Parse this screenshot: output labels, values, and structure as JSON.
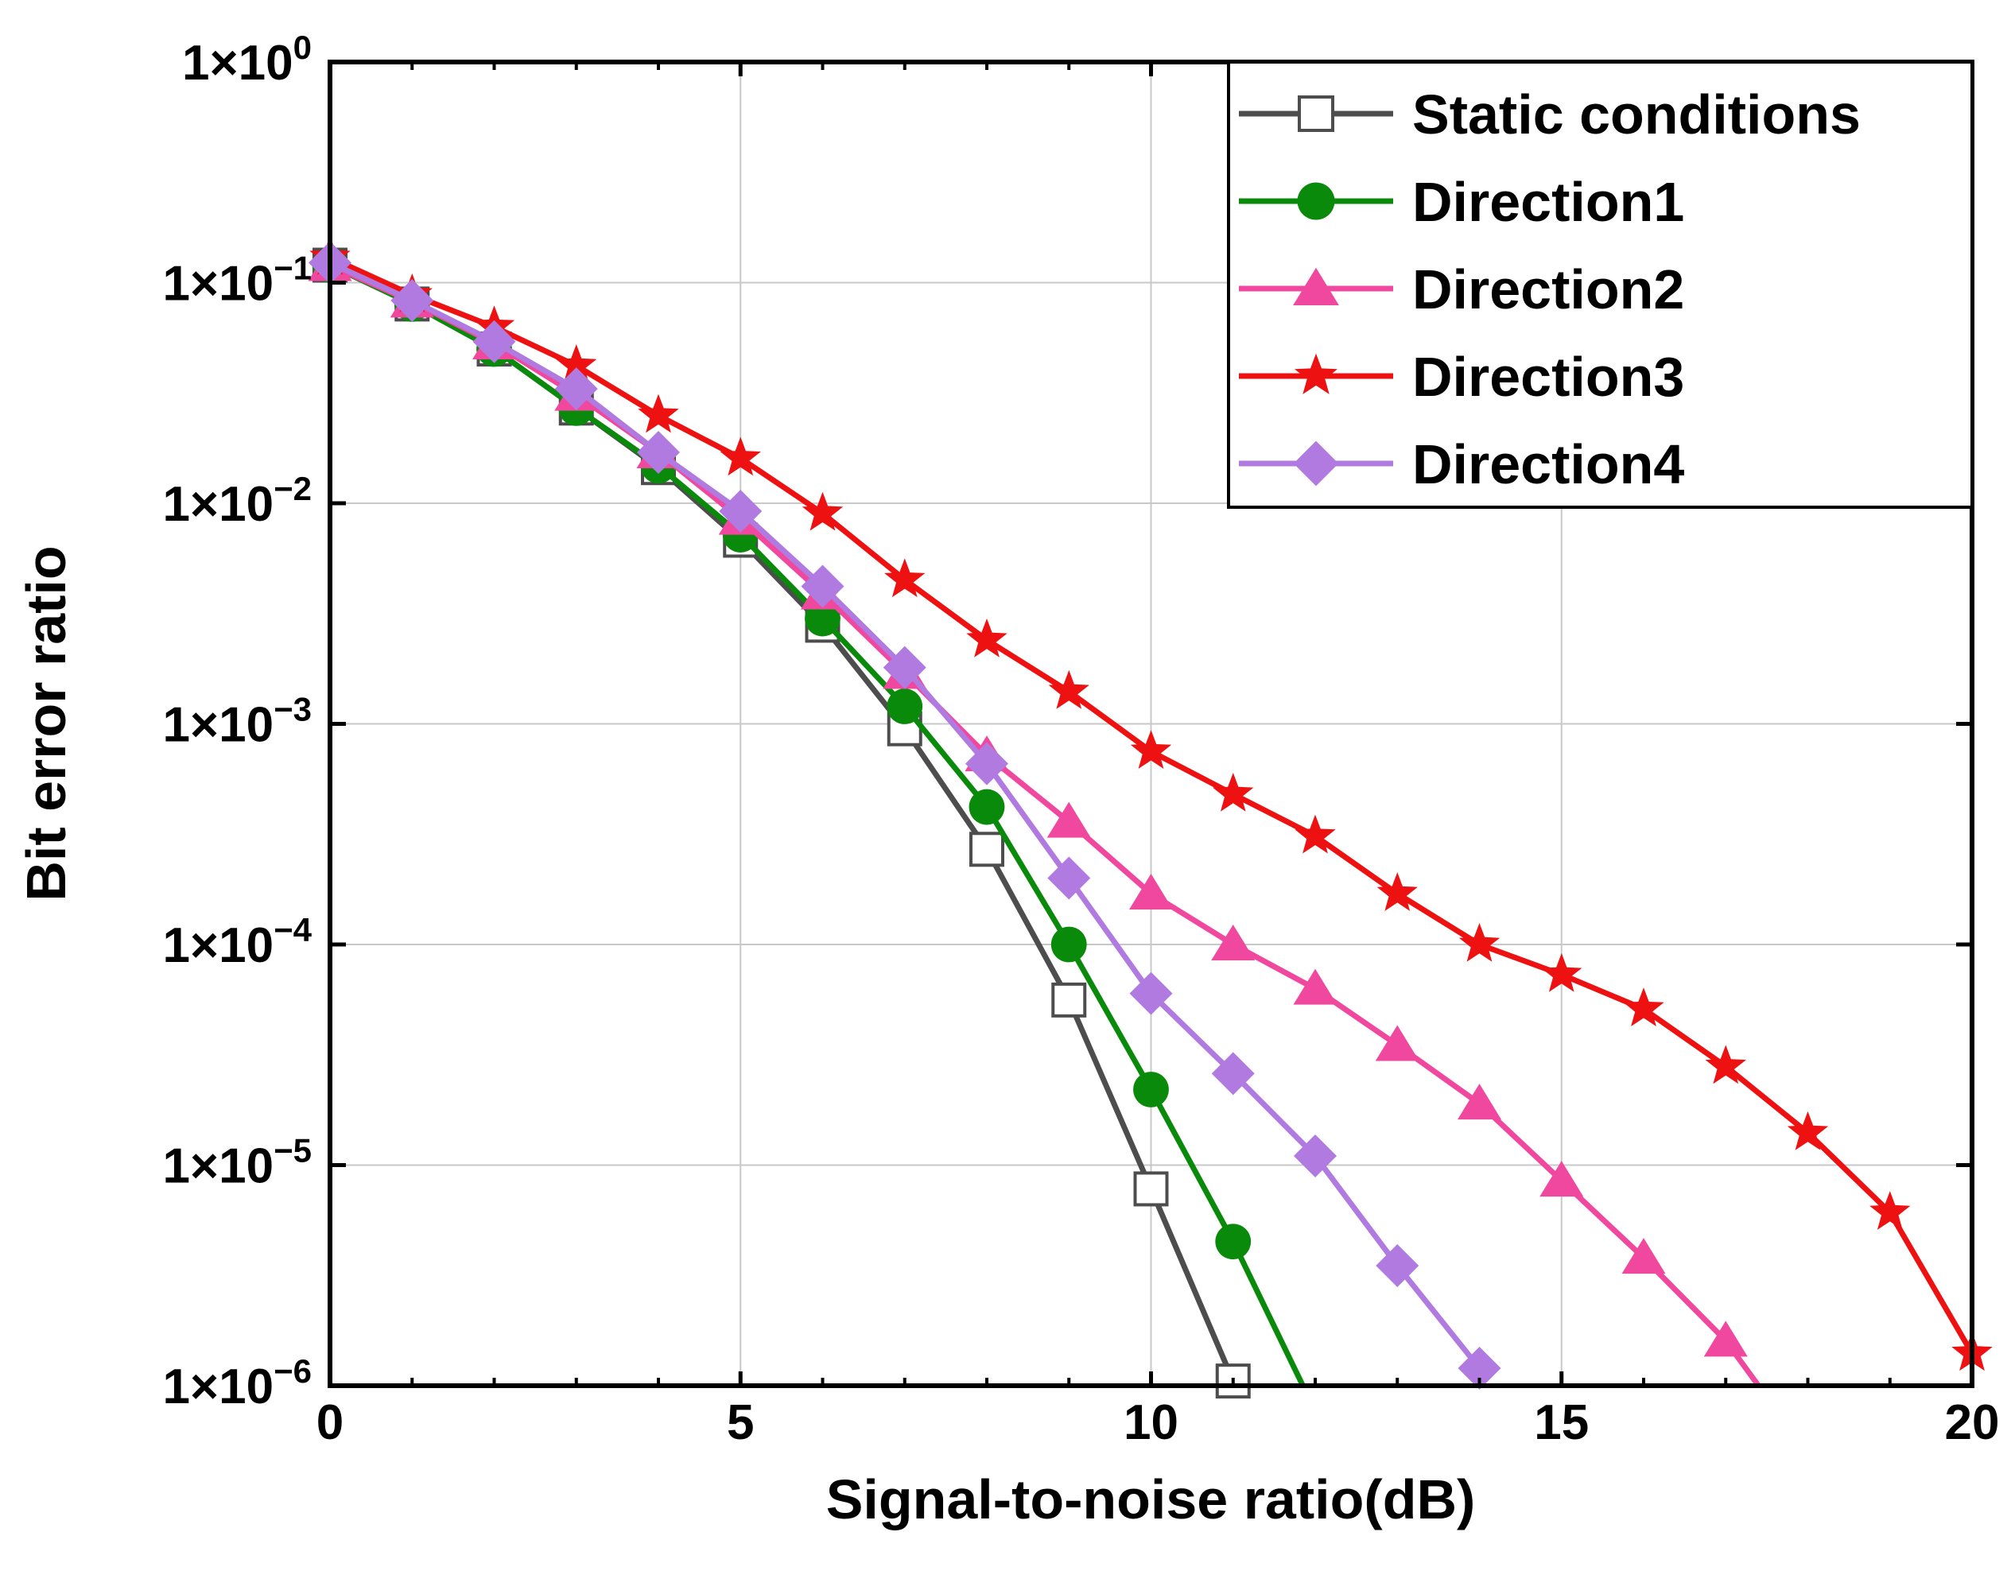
{
  "chart_data": {
    "type": "line",
    "title": "",
    "xlabel": "Signal-to-noise ratio(dB)",
    "ylabel": "Bit error ratio",
    "xlim": [
      0,
      20
    ],
    "ylim": [
      1e-06,
      1
    ],
    "yscale": "log",
    "grid": true,
    "legend_position": "top-right",
    "x_ticks": [
      0,
      5,
      10,
      15,
      20
    ],
    "x_tick_labels": [
      "0",
      "5",
      "10",
      "15",
      "20"
    ],
    "y_ticks": [
      {
        "value": 1,
        "base": "1×10",
        "exp": "0"
      },
      {
        "value": 0.1,
        "base": "1×10",
        "exp": "−1"
      },
      {
        "value": 0.01,
        "base": "1×10",
        "exp": "−2"
      },
      {
        "value": 0.001,
        "base": "1×10",
        "exp": "−3"
      },
      {
        "value": 0.0001,
        "base": "1×10",
        "exp": "−4"
      },
      {
        "value": 1e-05,
        "base": "1×10",
        "exp": "−5"
      },
      {
        "value": 1e-06,
        "base": "1×10",
        "exp": "−6"
      }
    ],
    "series": [
      {
        "name": "Static conditions",
        "color": "#4d4d4d",
        "marker": "square-open",
        "x": [
          0,
          1,
          2,
          3,
          4,
          5,
          6,
          7,
          8,
          9,
          10,
          11
        ],
        "y": [
          0.12,
          0.08,
          0.05,
          0.027,
          0.0145,
          0.0068,
          0.0028,
          0.00095,
          0.00027,
          5.6e-05,
          7.8e-06,
          1.05e-06
        ]
      },
      {
        "name": "Direction1",
        "color": "#0a8a0a",
        "marker": "circle",
        "x": [
          0,
          1,
          2,
          3,
          4,
          5,
          6,
          7,
          8,
          9,
          10,
          11,
          11.85
        ],
        "y": [
          0.12,
          0.08,
          0.05,
          0.027,
          0.0148,
          0.0072,
          0.003,
          0.0012,
          0.00042,
          0.0001,
          2.2e-05,
          4.5e-06,
          1e-06
        ]
      },
      {
        "name": "Direction2",
        "color": "#f0489e",
        "marker": "triangle",
        "x": [
          0,
          1,
          2,
          3,
          4,
          5,
          6,
          7,
          8,
          9,
          10,
          11,
          12,
          13,
          14,
          15,
          16,
          17,
          17.4
        ],
        "y": [
          0.12,
          0.082,
          0.053,
          0.031,
          0.017,
          0.0085,
          0.0039,
          0.0017,
          0.00072,
          0.00036,
          0.00017,
          0.0001,
          6.3e-05,
          3.5e-05,
          1.9e-05,
          8.5e-06,
          3.8e-06,
          1.6e-06,
          1e-06
        ]
      },
      {
        "name": "Direction3",
        "color": "#ee1111",
        "marker": "star",
        "x": [
          0,
          1,
          2,
          3,
          4,
          5,
          6,
          7,
          8,
          9,
          10,
          11,
          12,
          13,
          14,
          15,
          16,
          17,
          18,
          19,
          20
        ],
        "y": [
          0.13,
          0.088,
          0.063,
          0.042,
          0.025,
          0.016,
          0.009,
          0.0045,
          0.0024,
          0.0014,
          0.00075,
          0.00048,
          0.00031,
          0.00017,
          0.0001,
          7.3e-05,
          5.1e-05,
          2.8e-05,
          1.4e-05,
          6.1e-06,
          1.4e-06
        ]
      },
      {
        "name": "Direction4",
        "color": "#b07ae0",
        "marker": "diamond",
        "x": [
          0,
          1,
          2,
          3,
          4,
          5,
          6,
          7,
          8,
          9,
          10,
          11,
          12,
          13,
          14
        ],
        "y": [
          0.123,
          0.083,
          0.054,
          0.033,
          0.017,
          0.0092,
          0.0042,
          0.0018,
          0.00066,
          0.0002,
          6e-05,
          2.6e-05,
          1.1e-05,
          3.5e-06,
          1.2e-06
        ]
      }
    ]
  }
}
